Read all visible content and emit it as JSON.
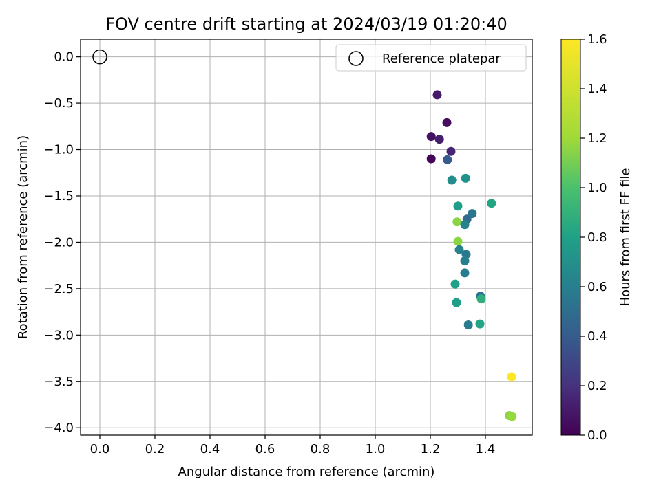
{
  "chart_data": {
    "type": "scatter",
    "title": "FOV centre drift starting at 2024/03/19 01:20:40",
    "xlabel": "Angular distance from reference (arcmin)",
    "ylabel": "Rotation from reference (arcmin)",
    "xlim": [
      -0.07,
      1.57
    ],
    "ylim": [
      -4.08,
      0.19
    ],
    "xticks": [
      0.0,
      0.2,
      0.4,
      0.6,
      0.8,
      1.0,
      1.2,
      1.4
    ],
    "xtick_labels": [
      "0.0",
      "0.2",
      "0.4",
      "0.6",
      "0.8",
      "1.0",
      "1.2",
      "1.4"
    ],
    "yticks": [
      0.0,
      -0.5,
      -1.0,
      -1.5,
      -2.0,
      -2.5,
      -3.0,
      -3.5,
      -4.0
    ],
    "ytick_labels": [
      "0.0",
      "−0.5",
      "−1.0",
      "−1.5",
      "−2.0",
      "−2.5",
      "−3.0",
      "−3.5",
      "−4.0"
    ],
    "grid": true,
    "legend": {
      "placement": "top-right",
      "entries": [
        "Reference platepar"
      ]
    },
    "reference_point": {
      "x": 0.0,
      "y": 0.0
    },
    "colorbar": {
      "label": "Hours from first FF file",
      "colormap": "viridis",
      "range": [
        0.0,
        1.6
      ],
      "ticks": [
        0.0,
        0.2,
        0.4,
        0.6,
        0.8,
        1.0,
        1.2,
        1.4,
        1.6
      ],
      "tick_labels": [
        "0.0",
        "0.2",
        "0.4",
        "0.6",
        "0.8",
        "1.0",
        "1.2",
        "1.4",
        "1.6"
      ]
    },
    "series": [
      {
        "points": [
          {
            "x": 1.225,
            "y": -0.41,
            "c": 0.1
          },
          {
            "x": 1.26,
            "y": -0.71,
            "c": 0.05
          },
          {
            "x": 1.203,
            "y": -0.86,
            "c": 0.07
          },
          {
            "x": 1.233,
            "y": -0.89,
            "c": 0.12
          },
          {
            "x": 1.275,
            "y": -1.02,
            "c": 0.15
          },
          {
            "x": 1.203,
            "y": -1.1,
            "c": 0.02
          },
          {
            "x": 1.262,
            "y": -1.11,
            "c": 0.4
          },
          {
            "x": 1.328,
            "y": -1.31,
            "c": 0.72
          },
          {
            "x": 1.278,
            "y": -1.33,
            "c": 0.68
          },
          {
            "x": 1.422,
            "y": -1.58,
            "c": 0.82
          },
          {
            "x": 1.3,
            "y": -1.61,
            "c": 0.78
          },
          {
            "x": 1.352,
            "y": -1.69,
            "c": 0.55
          },
          {
            "x": 1.333,
            "y": -1.75,
            "c": 0.48
          },
          {
            "x": 1.297,
            "y": -1.78,
            "c": 1.15
          },
          {
            "x": 1.325,
            "y": -1.81,
            "c": 0.62
          },
          {
            "x": 1.3,
            "y": -1.99,
            "c": 1.15
          },
          {
            "x": 1.305,
            "y": -2.08,
            "c": 0.62
          },
          {
            "x": 1.33,
            "y": -2.13,
            "c": 0.56
          },
          {
            "x": 1.325,
            "y": -2.2,
            "c": 0.6
          },
          {
            "x": 1.325,
            "y": -2.33,
            "c": 0.58
          },
          {
            "x": 1.29,
            "y": -2.45,
            "c": 0.8
          },
          {
            "x": 1.382,
            "y": -2.58,
            "c": 0.55
          },
          {
            "x": 1.385,
            "y": -2.61,
            "c": 0.88
          },
          {
            "x": 1.295,
            "y": -2.65,
            "c": 0.78
          },
          {
            "x": 1.338,
            "y": -2.89,
            "c": 0.58
          },
          {
            "x": 1.38,
            "y": -2.88,
            "c": 0.82
          },
          {
            "x": 1.495,
            "y": -3.45,
            "c": 1.6
          },
          {
            "x": 1.487,
            "y": -3.87,
            "c": 1.15
          },
          {
            "x": 1.497,
            "y": -3.88,
            "c": 1.18
          }
        ]
      }
    ]
  }
}
